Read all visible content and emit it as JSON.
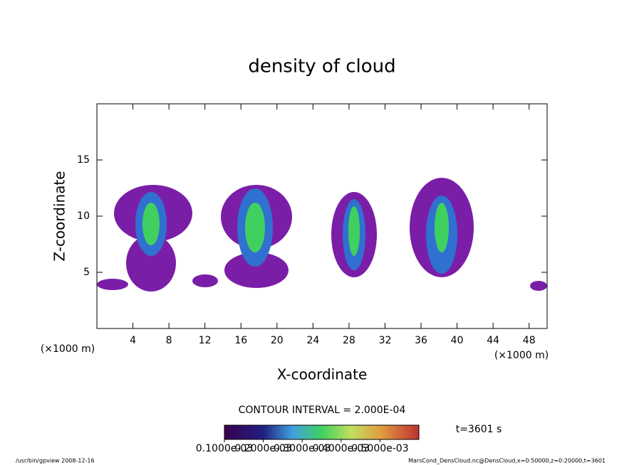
{
  "chart_data": {
    "type": "contour",
    "title": "density of cloud",
    "x_label": "X-coordinate",
    "y_label": "Z-coordinate",
    "x_unit_left": "(×1000 m)",
    "x_unit_right": "(×1000 m)",
    "xlim": [
      0,
      50
    ],
    "ylim": [
      0,
      20
    ],
    "xticks": [
      4,
      8,
      12,
      16,
      20,
      24,
      28,
      32,
      36,
      40,
      44,
      48
    ],
    "yticks": [
      5,
      10,
      15
    ],
    "contour_interval": "CONTOUR INTERVAL = 2.000E-04",
    "time_label": "t=3601 s",
    "colorbar_lim": [
      0.0001,
      0.0006
    ],
    "colorbar_ticks": [
      {
        "value": 0.0001,
        "label": "0.1000e-03"
      },
      {
        "value": 0.0002,
        "label": "0.2000e-03"
      },
      {
        "value": 0.0003,
        "label": "0.3000e-03"
      },
      {
        "value": 0.0004,
        "label": "0.4000e-03"
      },
      {
        "value": 0.0005,
        "label": "0.5000e-03"
      }
    ],
    "footer_left": "/usr/bin/gpview  2008-12-16",
    "footer_right": "MarsCond_DensCloud.nc@DensCloud,x=0:50000,z=0:20000,t=3601"
  }
}
